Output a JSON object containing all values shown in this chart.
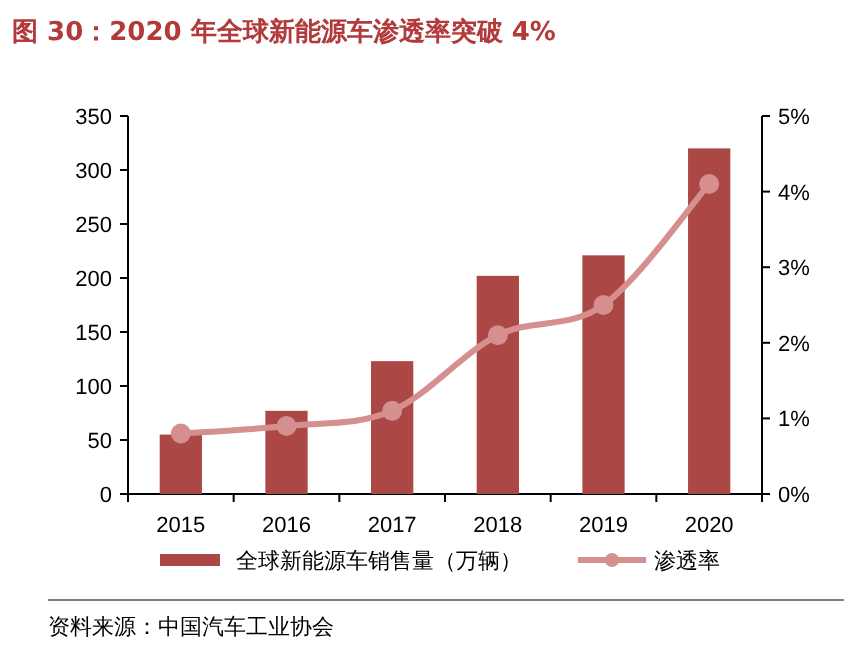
{
  "chart_data": {
    "type": "bar",
    "title": "图 30：2020 年全球新能源车渗透率突破 4%",
    "categories": [
      "2015",
      "2016",
      "2017",
      "2018",
      "2019",
      "2020"
    ],
    "series": [
      {
        "name": "全球新能源车销售量（万辆）",
        "color": "#ab4744",
        "values": [
          55,
          77,
          123,
          202,
          221,
          320
        ]
      },
      {
        "name": "渗透率",
        "type": "line",
        "axis": "y2",
        "color": "#d48f8e",
        "marker": "circle",
        "values": [
          0.8,
          0.9,
          1.1,
          2.1,
          2.5,
          4.1
        ]
      }
    ],
    "ylim": [
      0,
      350
    ],
    "yticks": [
      0,
      50,
      100,
      150,
      200,
      250,
      300,
      350
    ],
    "y2lim": [
      0,
      5
    ],
    "y2ticks": [
      {
        "value": 0,
        "label": "0%"
      },
      {
        "value": 1,
        "label": "1%"
      },
      {
        "value": 2,
        "label": "2%"
      },
      {
        "value": 3,
        "label": "3%"
      },
      {
        "value": 4,
        "label": "4%"
      },
      {
        "value": 5,
        "label": "5%"
      }
    ],
    "legend": "bottom",
    "annotations": [
      "资料来源：中国汽车工业协会"
    ]
  }
}
